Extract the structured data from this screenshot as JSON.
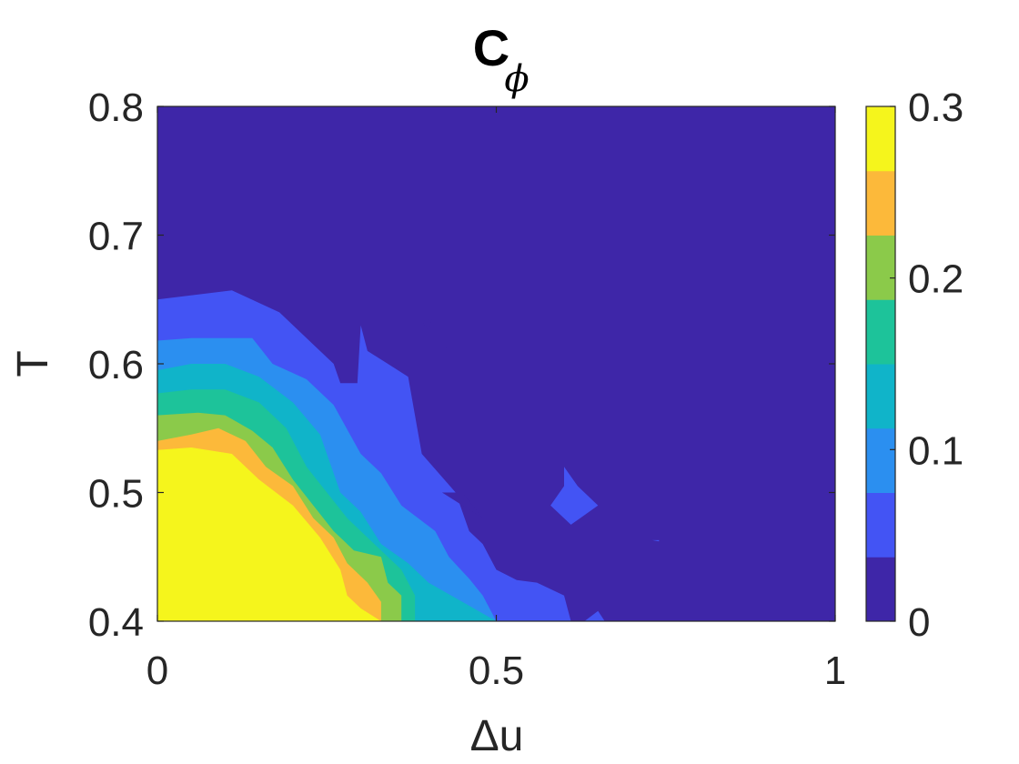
{
  "chart_data": {
    "type": "contour",
    "title": "C",
    "title_subscript": "ϕ",
    "xlabel": "Δu",
    "ylabel": "T",
    "xlim": [
      0,
      1
    ],
    "ylim": [
      0.4,
      0.8
    ],
    "x_ticks": [
      {
        "value": 0,
        "label": "0"
      },
      {
        "value": 0.5,
        "label": "0.5"
      },
      {
        "value": 1,
        "label": "1"
      }
    ],
    "y_ticks": [
      {
        "value": 0.4,
        "label": "0.4"
      },
      {
        "value": 0.5,
        "label": "0.5"
      },
      {
        "value": 0.6,
        "label": "0.6"
      },
      {
        "value": 0.7,
        "label": "0.7"
      },
      {
        "value": 0.8,
        "label": "0.8"
      }
    ],
    "grid": false,
    "colorbar": {
      "position": "right",
      "range": [
        0,
        0.3
      ],
      "ticks": [
        {
          "value": 0,
          "label": "0"
        },
        {
          "value": 0.1,
          "label": "0.1"
        },
        {
          "value": 0.2,
          "label": "0.2"
        },
        {
          "value": 0.3,
          "label": "0.3"
        }
      ]
    },
    "levels": [
      {
        "min": 0.0,
        "max": 0.0375,
        "color": "#3e26a8"
      },
      {
        "min": 0.0375,
        "max": 0.075,
        "color": "#4354f4"
      },
      {
        "min": 0.075,
        "max": 0.1125,
        "color": "#2b8ff0"
      },
      {
        "min": 0.1125,
        "max": 0.15,
        "color": "#10b4c9"
      },
      {
        "min": 0.15,
        "max": 0.1875,
        "color": "#1dc39a"
      },
      {
        "min": 0.1875,
        "max": 0.225,
        "color": "#8bca4a"
      },
      {
        "min": 0.225,
        "max": 0.2625,
        "color": "#fcb93a"
      },
      {
        "min": 0.2625,
        "max": 0.3,
        "color": "#f5f51c"
      }
    ],
    "regions": [
      {
        "level": 1,
        "points": [
          [
            0,
            0.4
          ],
          [
            0,
            0.65
          ],
          [
            0.11,
            0.657
          ],
          [
            0.18,
            0.64
          ],
          [
            0.24,
            0.61
          ],
          [
            0.26,
            0.6
          ],
          [
            0.27,
            0.585
          ],
          [
            0.295,
            0.585
          ],
          [
            0.3,
            0.63
          ],
          [
            0.31,
            0.61
          ],
          [
            0.34,
            0.6
          ],
          [
            0.37,
            0.59
          ],
          [
            0.38,
            0.56
          ],
          [
            0.39,
            0.53
          ],
          [
            0.44,
            0.5
          ],
          [
            0.46,
            0.47
          ],
          [
            0.48,
            0.46
          ],
          [
            0.5,
            0.44
          ],
          [
            0.53,
            0.432
          ],
          [
            0.56,
            0.43
          ],
          [
            0.6,
            0.42
          ],
          [
            0.61,
            0.4
          ]
        ]
      },
      {
        "level": 0,
        "points": [
          [
            0.42,
            0.613
          ],
          [
            0.43,
            0.612
          ],
          [
            0.43,
            0.61
          ],
          [
            0.42,
            0.611
          ]
        ]
      },
      {
        "level": 0,
        "points": [
          [
            0.39,
            0.633
          ],
          [
            0.405,
            0.635
          ],
          [
            0.4,
            0.626
          ]
        ]
      },
      {
        "level": 0,
        "points": [
          [
            0.42,
            0.5
          ],
          [
            0.45,
            0.5
          ],
          [
            0.48,
            0.48
          ]
        ]
      },
      {
        "level": 2,
        "points": [
          [
            0,
            0.4
          ],
          [
            0,
            0.618
          ],
          [
            0.05,
            0.62
          ],
          [
            0.1,
            0.62
          ],
          [
            0.14,
            0.62
          ],
          [
            0.17,
            0.6
          ],
          [
            0.22,
            0.588
          ],
          [
            0.26,
            0.568
          ],
          [
            0.3,
            0.53
          ],
          [
            0.33,
            0.515
          ],
          [
            0.36,
            0.49
          ],
          [
            0.41,
            0.47
          ],
          [
            0.43,
            0.45
          ],
          [
            0.46,
            0.433
          ],
          [
            0.48,
            0.42
          ],
          [
            0.5,
            0.4
          ]
        ]
      },
      {
        "level": 3,
        "points": [
          [
            0,
            0.4
          ],
          [
            0,
            0.595
          ],
          [
            0.05,
            0.6
          ],
          [
            0.1,
            0.6
          ],
          [
            0.15,
            0.59
          ],
          [
            0.2,
            0.57
          ],
          [
            0.24,
            0.545
          ],
          [
            0.27,
            0.5
          ],
          [
            0.3,
            0.485
          ],
          [
            0.33,
            0.46
          ],
          [
            0.37,
            0.445
          ],
          [
            0.4,
            0.43
          ],
          [
            0.45,
            0.415
          ],
          [
            0.5,
            0.4
          ]
        ]
      },
      {
        "level": 4,
        "points": [
          [
            0,
            0.4
          ],
          [
            0,
            0.577
          ],
          [
            0.05,
            0.58
          ],
          [
            0.1,
            0.58
          ],
          [
            0.15,
            0.57
          ],
          [
            0.19,
            0.55
          ],
          [
            0.22,
            0.52
          ],
          [
            0.25,
            0.5
          ],
          [
            0.28,
            0.48
          ],
          [
            0.32,
            0.46
          ],
          [
            0.36,
            0.44
          ],
          [
            0.38,
            0.42
          ],
          [
            0.38,
            0.4
          ]
        ]
      },
      {
        "level": 5,
        "points": [
          [
            0,
            0.4
          ],
          [
            0,
            0.56
          ],
          [
            0.06,
            0.562
          ],
          [
            0.1,
            0.56
          ],
          [
            0.14,
            0.548
          ],
          [
            0.17,
            0.535
          ],
          [
            0.2,
            0.51
          ],
          [
            0.23,
            0.49
          ],
          [
            0.26,
            0.47
          ],
          [
            0.29,
            0.455
          ],
          [
            0.33,
            0.45
          ],
          [
            0.34,
            0.43
          ],
          [
            0.36,
            0.42
          ],
          [
            0.36,
            0.4
          ]
        ]
      },
      {
        "level": 6,
        "points": [
          [
            0,
            0.4
          ],
          [
            0,
            0.54
          ],
          [
            0.05,
            0.545
          ],
          [
            0.09,
            0.55
          ],
          [
            0.13,
            0.54
          ],
          [
            0.16,
            0.52
          ],
          [
            0.2,
            0.505
          ],
          [
            0.23,
            0.48
          ],
          [
            0.26,
            0.465
          ],
          [
            0.28,
            0.445
          ],
          [
            0.31,
            0.43
          ],
          [
            0.33,
            0.415
          ],
          [
            0.33,
            0.4
          ]
        ]
      },
      {
        "level": 7,
        "points": [
          [
            0,
            0.4
          ],
          [
            0,
            0.533
          ],
          [
            0.05,
            0.535
          ],
          [
            0.11,
            0.53
          ],
          [
            0.15,
            0.51
          ],
          [
            0.2,
            0.49
          ],
          [
            0.24,
            0.465
          ],
          [
            0.27,
            0.44
          ],
          [
            0.28,
            0.42
          ],
          [
            0.3,
            0.41
          ],
          [
            0.33,
            0.4
          ]
        ]
      },
      {
        "level": 0,
        "points": [
          [
            0.24,
            0.4
          ],
          [
            0.25,
            0.4
          ],
          [
            0.26,
            0.4
          ]
        ]
      },
      {
        "level": 1,
        "points": [
          [
            0.58,
            0.49
          ],
          [
            0.6,
            0.505
          ],
          [
            0.6,
            0.52
          ],
          [
            0.62,
            0.505
          ],
          [
            0.65,
            0.49
          ],
          [
            0.61,
            0.475
          ]
        ]
      },
      {
        "level": 1,
        "points": [
          [
            0.63,
            0.4
          ],
          [
            0.65,
            0.408
          ],
          [
            0.66,
            0.4
          ]
        ]
      },
      {
        "level": 1,
        "points": [
          [
            0.73,
            0.463
          ],
          [
            0.74,
            0.463
          ],
          [
            0.74,
            0.462
          ]
        ]
      },
      {
        "level": 1,
        "points": [
          [
            0.42,
            0.44
          ],
          [
            0.43,
            0.43
          ],
          [
            0.42,
            0.44
          ]
        ]
      }
    ]
  }
}
